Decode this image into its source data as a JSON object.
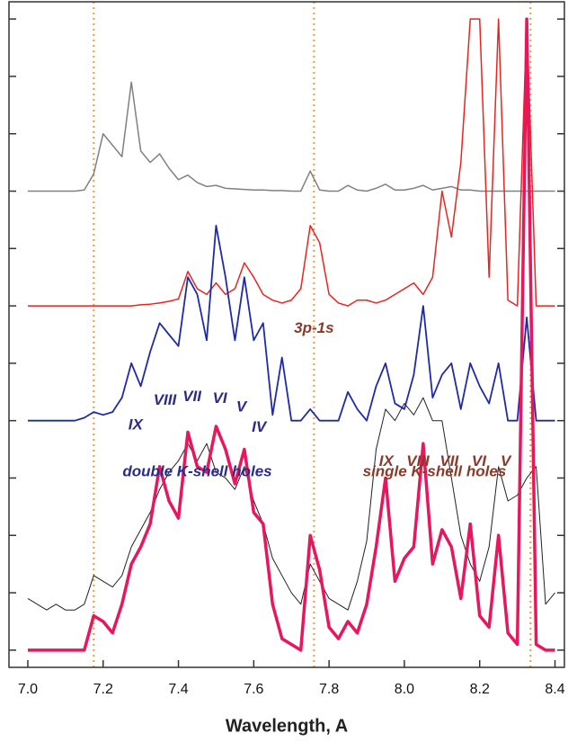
{
  "chart_data": {
    "type": "line",
    "x_label": "Wavelength, A",
    "xlim": [
      6.95,
      8.425
    ],
    "ylim": [
      -0.3,
      11.3
    ],
    "xticks": [
      {
        "value": 7,
        "label": "7.0"
      },
      7.2,
      7.4,
      7.6,
      7.8,
      {
        "value": 8,
        "label": "8.0"
      },
      8.2,
      8.4
    ],
    "yticks": [
      0,
      1,
      2,
      3,
      4,
      5,
      6,
      7,
      8,
      9,
      10,
      11
    ],
    "x": [
      7.0,
      7.025,
      7.05,
      7.075,
      7.1,
      7.125,
      7.15,
      7.175,
      7.2,
      7.225,
      7.25,
      7.275,
      7.3,
      7.325,
      7.35,
      7.375,
      7.4,
      7.425,
      7.45,
      7.475,
      7.5,
      7.525,
      7.55,
      7.575,
      7.6,
      7.625,
      7.65,
      7.675,
      7.7,
      7.725,
      7.75,
      7.775,
      7.8,
      7.825,
      7.85,
      7.875,
      7.9,
      7.925,
      7.95,
      7.975,
      8.0,
      8.025,
      8.05,
      8.075,
      8.1,
      8.125,
      8.15,
      8.175,
      8.2,
      8.225,
      8.25,
      8.275,
      8.3,
      8.325,
      8.35,
      8.375,
      8.4
    ],
    "series": [
      {
        "color": "#808080",
        "width": 1.5,
        "values": [
          8.0,
          8.0,
          8.0,
          8.0,
          8.0,
          8.0,
          8.02,
          8.3,
          9.0,
          8.8,
          8.6,
          9.9,
          8.7,
          8.5,
          8.65,
          8.4,
          8.2,
          8.28,
          8.15,
          8.08,
          8.1,
          8.05,
          8.04,
          8.03,
          8.02,
          8.02,
          8.01,
          8.01,
          8.0,
          8.0,
          8.35,
          8.02,
          8.0,
          8.0,
          8.1,
          8.02,
          8.0,
          8.05,
          8.12,
          8.02,
          8.02,
          8.05,
          8.1,
          8.02,
          8.05,
          8.08,
          8.02,
          8.02,
          8.0,
          8.0,
          8.0,
          8.0,
          8.0,
          8.0,
          8.0,
          8.0,
          8.0
        ]
      },
      {
        "color": "#e8251f",
        "width": 1.5,
        "values": [
          6.0,
          6.0,
          6.0,
          6.0,
          6.0,
          6.0,
          6.0,
          6.0,
          6.0,
          6.0,
          6.0,
          6.0,
          6.02,
          6.03,
          6.05,
          6.08,
          6.12,
          6.6,
          6.3,
          6.2,
          6.4,
          6.2,
          6.3,
          6.75,
          6.5,
          6.2,
          6.1,
          6.05,
          6.1,
          6.3,
          7.4,
          7.1,
          6.2,
          6.05,
          6.0,
          6.1,
          6.1,
          6.05,
          6.1,
          6.2,
          6.3,
          6.4,
          6.2,
          6.5,
          8.0,
          7.2,
          8.5,
          11.0,
          11.0,
          6.5,
          11.0,
          6.1,
          6.0,
          11.0,
          6.0,
          6.0,
          6.0
        ]
      },
      {
        "color": "#1f2aa8",
        "width": 1.8,
        "values": [
          4.0,
          4.0,
          4.0,
          4.0,
          4.0,
          4.0,
          4.05,
          4.15,
          4.1,
          4.15,
          4.4,
          5.0,
          4.6,
          5.2,
          5.7,
          5.5,
          5.3,
          6.5,
          6.2,
          5.4,
          7.4,
          6.5,
          5.4,
          6.5,
          5.4,
          5.7,
          4.1,
          5.1,
          4.0,
          4.0,
          4.2,
          4.0,
          4.0,
          4.0,
          4.5,
          4.2,
          4.0,
          4.6,
          5.0,
          4.3,
          4.2,
          4.8,
          6.0,
          4.4,
          4.8,
          5.0,
          4.2,
          5.0,
          4.6,
          4.3,
          5.0,
          4.0,
          4.0,
          5.8,
          4.0,
          4.0,
          4.0
        ]
      },
      {
        "color": "#222222",
        "width": 1,
        "values": [
          0.9,
          0.8,
          0.7,
          0.8,
          0.7,
          0.7,
          0.8,
          1.3,
          1.2,
          1.1,
          1.3,
          1.8,
          2.1,
          2.4,
          2.8,
          3.1,
          3.3,
          3.6,
          3.3,
          3.6,
          3.1,
          3.0,
          2.8,
          3.2,
          2.6,
          2.2,
          1.6,
          1.3,
          1.0,
          0.8,
          1.5,
          1.2,
          0.9,
          0.8,
          0.7,
          1.2,
          1.9,
          3.5,
          4.2,
          4.0,
          4.3,
          4.1,
          4.4,
          4.0,
          4.0,
          3.0,
          2.0,
          1.5,
          1.2,
          1.8,
          3.2,
          2.6,
          2.7,
          3.0,
          3.2,
          0.8,
          1.0
        ]
      },
      {
        "color": "#e8175d",
        "width": 3.5,
        "values": [
          0.0,
          0.0,
          0.0,
          0.0,
          0.0,
          0.0,
          0.0,
          0.6,
          0.5,
          0.3,
          0.8,
          1.5,
          1.8,
          2.2,
          3.2,
          2.6,
          2.3,
          3.8,
          3.2,
          3.1,
          3.9,
          3.5,
          2.9,
          3.5,
          2.4,
          2.2,
          0.8,
          0.2,
          0.1,
          0.0,
          2.0,
          1.4,
          0.4,
          0.2,
          0.5,
          0.3,
          0.8,
          1.8,
          3.0,
          1.2,
          1.6,
          1.8,
          3.6,
          1.5,
          2.1,
          1.8,
          0.9,
          2.2,
          0.6,
          0.4,
          2.0,
          0.3,
          0.1,
          11.0,
          0.1,
          0.0,
          0.0
        ]
      }
    ],
    "vlines": {
      "color": "#f39a3c",
      "values": [
        7.175,
        7.76,
        8.335
      ]
    },
    "annotations": [
      {
        "text": "3p-1s",
        "x": 7.76,
        "y": 5.6,
        "color": "#8b3a2a"
      },
      {
        "text": "double K-shell holes",
        "x": 7.45,
        "y": 3.1,
        "color": "#2b2b8c"
      },
      {
        "text": "single K-shell holes",
        "x": 8.08,
        "y": 3.1,
        "color": "#8b3a2a"
      },
      {
        "text": "IX",
        "x": 7.286,
        "y": 3.92,
        "color": "#2b2b8c"
      },
      {
        "text": "VIII",
        "x": 7.364,
        "y": 4.35,
        "color": "#2b2b8c"
      },
      {
        "text": "VII",
        "x": 7.436,
        "y": 4.41,
        "color": "#2b2b8c"
      },
      {
        "text": "VI",
        "x": 7.51,
        "y": 4.38,
        "color": "#2b2b8c"
      },
      {
        "text": "V",
        "x": 7.567,
        "y": 4.23,
        "color": "#2b2b8c"
      },
      {
        "text": "IV",
        "x": 7.614,
        "y": 3.88,
        "color": "#2b2b8c"
      },
      {
        "text": "IX",
        "x": 7.952,
        "y": 3.28,
        "color": "#8b3a2a"
      },
      {
        "text": "VIII",
        "x": 8.036,
        "y": 3.28,
        "color": "#8b3a2a"
      },
      {
        "text": "VII",
        "x": 8.119,
        "y": 3.28,
        "color": "#8b3a2a"
      },
      {
        "text": "VI",
        "x": 8.198,
        "y": 3.28,
        "color": "#8b3a2a"
      },
      {
        "text": "V",
        "x": 8.269,
        "y": 3.28,
        "color": "#8b3a2a"
      }
    ]
  }
}
